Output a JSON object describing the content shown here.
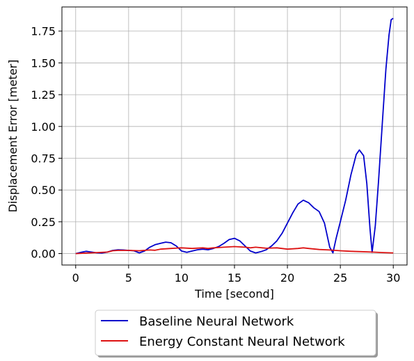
{
  "chart_data": {
    "type": "line",
    "title": "",
    "xlabel": "Time [second]",
    "ylabel": "Displacement Error [meter]",
    "xlim": [
      -1.3,
      31.3
    ],
    "ylim": [
      -0.09,
      1.94
    ],
    "xticks": [
      0,
      5,
      10,
      15,
      20,
      25,
      30
    ],
    "xtick_labels": [
      "0",
      "5",
      "10",
      "15",
      "20",
      "25",
      "30"
    ],
    "yticks": [
      0.0,
      0.25,
      0.5,
      0.75,
      1.0,
      1.25,
      1.5,
      1.75
    ],
    "ytick_labels": [
      "0.00",
      "0.25",
      "0.50",
      "0.75",
      "1.00",
      "1.25",
      "1.50",
      "1.75"
    ],
    "grid": true,
    "legend_position": "bottom-center-outside",
    "series": [
      {
        "name": "Baseline Neural Network",
        "color": "#0000cc",
        "x": [
          0,
          0.5,
          1.0,
          1.5,
          2.0,
          2.5,
          3.0,
          3.5,
          4.0,
          4.5,
          5.0,
          5.5,
          6.0,
          6.5,
          7.0,
          7.5,
          8.0,
          8.5,
          9.0,
          9.5,
          10.0,
          10.5,
          11.0,
          11.5,
          12.0,
          12.5,
          13.0,
          13.5,
          14.0,
          14.5,
          15.0,
          15.5,
          16.0,
          16.5,
          17.0,
          17.5,
          18.0,
          18.5,
          19.0,
          19.5,
          20.0,
          20.5,
          21.0,
          21.5,
          22.0,
          22.5,
          23.0,
          23.5,
          24.0,
          24.3,
          24.6,
          25.0,
          25.5,
          26.0,
          26.5,
          26.8,
          27.2,
          27.5,
          27.8,
          28.0,
          28.3,
          28.6,
          29.0,
          29.3,
          29.6,
          29.8,
          30.0
        ],
        "y": [
          0.0,
          0.01,
          0.018,
          0.012,
          0.006,
          0.004,
          0.012,
          0.025,
          0.03,
          0.028,
          0.025,
          0.022,
          0.005,
          0.02,
          0.05,
          0.07,
          0.08,
          0.09,
          0.085,
          0.06,
          0.02,
          0.01,
          0.02,
          0.03,
          0.035,
          0.03,
          0.04,
          0.055,
          0.08,
          0.11,
          0.12,
          0.1,
          0.06,
          0.02,
          0.005,
          0.015,
          0.03,
          0.06,
          0.1,
          0.16,
          0.24,
          0.32,
          0.39,
          0.42,
          0.4,
          0.36,
          0.33,
          0.24,
          0.05,
          0.005,
          0.12,
          0.25,
          0.42,
          0.62,
          0.78,
          0.815,
          0.77,
          0.55,
          0.2,
          0.01,
          0.22,
          0.56,
          1.07,
          1.45,
          1.72,
          1.84,
          1.85
        ]
      },
      {
        "name": "Energy Constant Neural Network",
        "color": "#dd1111",
        "x": [
          0,
          1,
          2,
          3,
          3.5,
          4,
          5,
          6,
          7,
          7.5,
          8,
          9,
          10,
          11,
          12,
          12.5,
          13,
          14,
          15,
          16,
          16.5,
          17,
          18,
          19,
          20,
          21,
          21.5,
          22,
          23,
          24,
          25,
          26,
          27,
          28,
          29,
          30
        ],
        "y": [
          0.0,
          0.004,
          0.008,
          0.012,
          0.022,
          0.025,
          0.025,
          0.022,
          0.028,
          0.026,
          0.035,
          0.04,
          0.045,
          0.04,
          0.045,
          0.04,
          0.045,
          0.05,
          0.055,
          0.05,
          0.045,
          0.05,
          0.042,
          0.045,
          0.035,
          0.04,
          0.045,
          0.04,
          0.032,
          0.028,
          0.022,
          0.018,
          0.015,
          0.012,
          0.008,
          0.005
        ]
      }
    ]
  }
}
